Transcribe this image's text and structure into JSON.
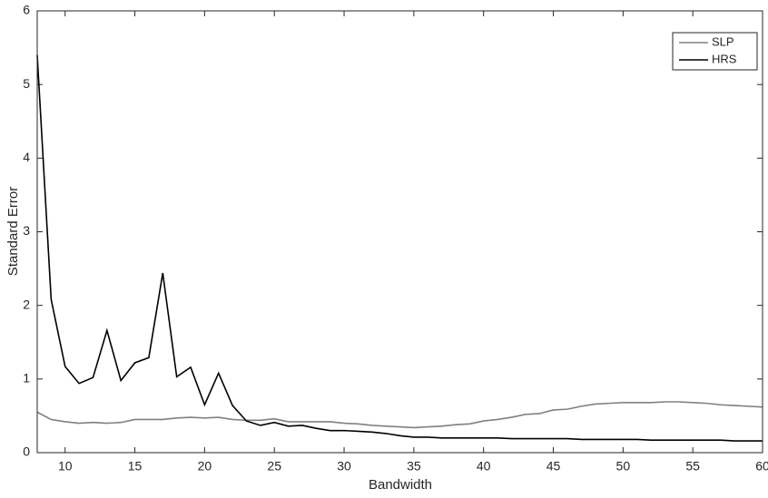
{
  "chart_data": {
    "type": "line",
    "x": [
      8,
      9,
      10,
      11,
      12,
      13,
      14,
      15,
      16,
      17,
      18,
      19,
      20,
      21,
      22,
      23,
      24,
      25,
      26,
      27,
      28,
      29,
      30,
      31,
      32,
      33,
      34,
      35,
      36,
      37,
      38,
      39,
      40,
      41,
      42,
      43,
      44,
      45,
      46,
      47,
      48,
      49,
      50,
      51,
      52,
      53,
      54,
      55,
      56,
      57,
      58,
      59,
      60
    ],
    "series": [
      {
        "name": "SLP",
        "color": "#808080",
        "values": [
          0.55,
          0.45,
          0.42,
          0.4,
          0.41,
          0.4,
          0.41,
          0.45,
          0.45,
          0.45,
          0.47,
          0.48,
          0.47,
          0.48,
          0.45,
          0.44,
          0.44,
          0.46,
          0.42,
          0.42,
          0.42,
          0.42,
          0.4,
          0.39,
          0.37,
          0.36,
          0.35,
          0.34,
          0.35,
          0.36,
          0.38,
          0.39,
          0.43,
          0.45,
          0.48,
          0.52,
          0.53,
          0.58,
          0.59,
          0.63,
          0.66,
          0.67,
          0.68,
          0.68,
          0.68,
          0.69,
          0.69,
          0.68,
          0.67,
          0.65,
          0.64,
          0.63,
          0.62
        ]
      },
      {
        "name": "HRS",
        "color": "#000000",
        "values": [
          5.4,
          2.08,
          1.17,
          0.94,
          1.02,
          1.66,
          0.98,
          1.22,
          1.29,
          2.44,
          1.03,
          1.16,
          0.65,
          1.08,
          0.64,
          0.43,
          0.37,
          0.41,
          0.36,
          0.37,
          0.33,
          0.3,
          0.3,
          0.29,
          0.28,
          0.26,
          0.23,
          0.21,
          0.21,
          0.2,
          0.2,
          0.2,
          0.2,
          0.2,
          0.19,
          0.19,
          0.19,
          0.19,
          0.19,
          0.18,
          0.18,
          0.18,
          0.18,
          0.18,
          0.17,
          0.17,
          0.17,
          0.17,
          0.17,
          0.17,
          0.16,
          0.16,
          0.16
        ]
      }
    ],
    "xlabel": "Bandwidth",
    "ylabel": "Standard Error",
    "xlim": [
      8,
      60
    ],
    "ylim": [
      0,
      6
    ],
    "xticks": [
      10,
      15,
      20,
      25,
      30,
      35,
      40,
      45,
      50,
      55,
      60
    ],
    "yticks": [
      0,
      1,
      2,
      3,
      4,
      5,
      6
    ],
    "legend": "upper right"
  }
}
